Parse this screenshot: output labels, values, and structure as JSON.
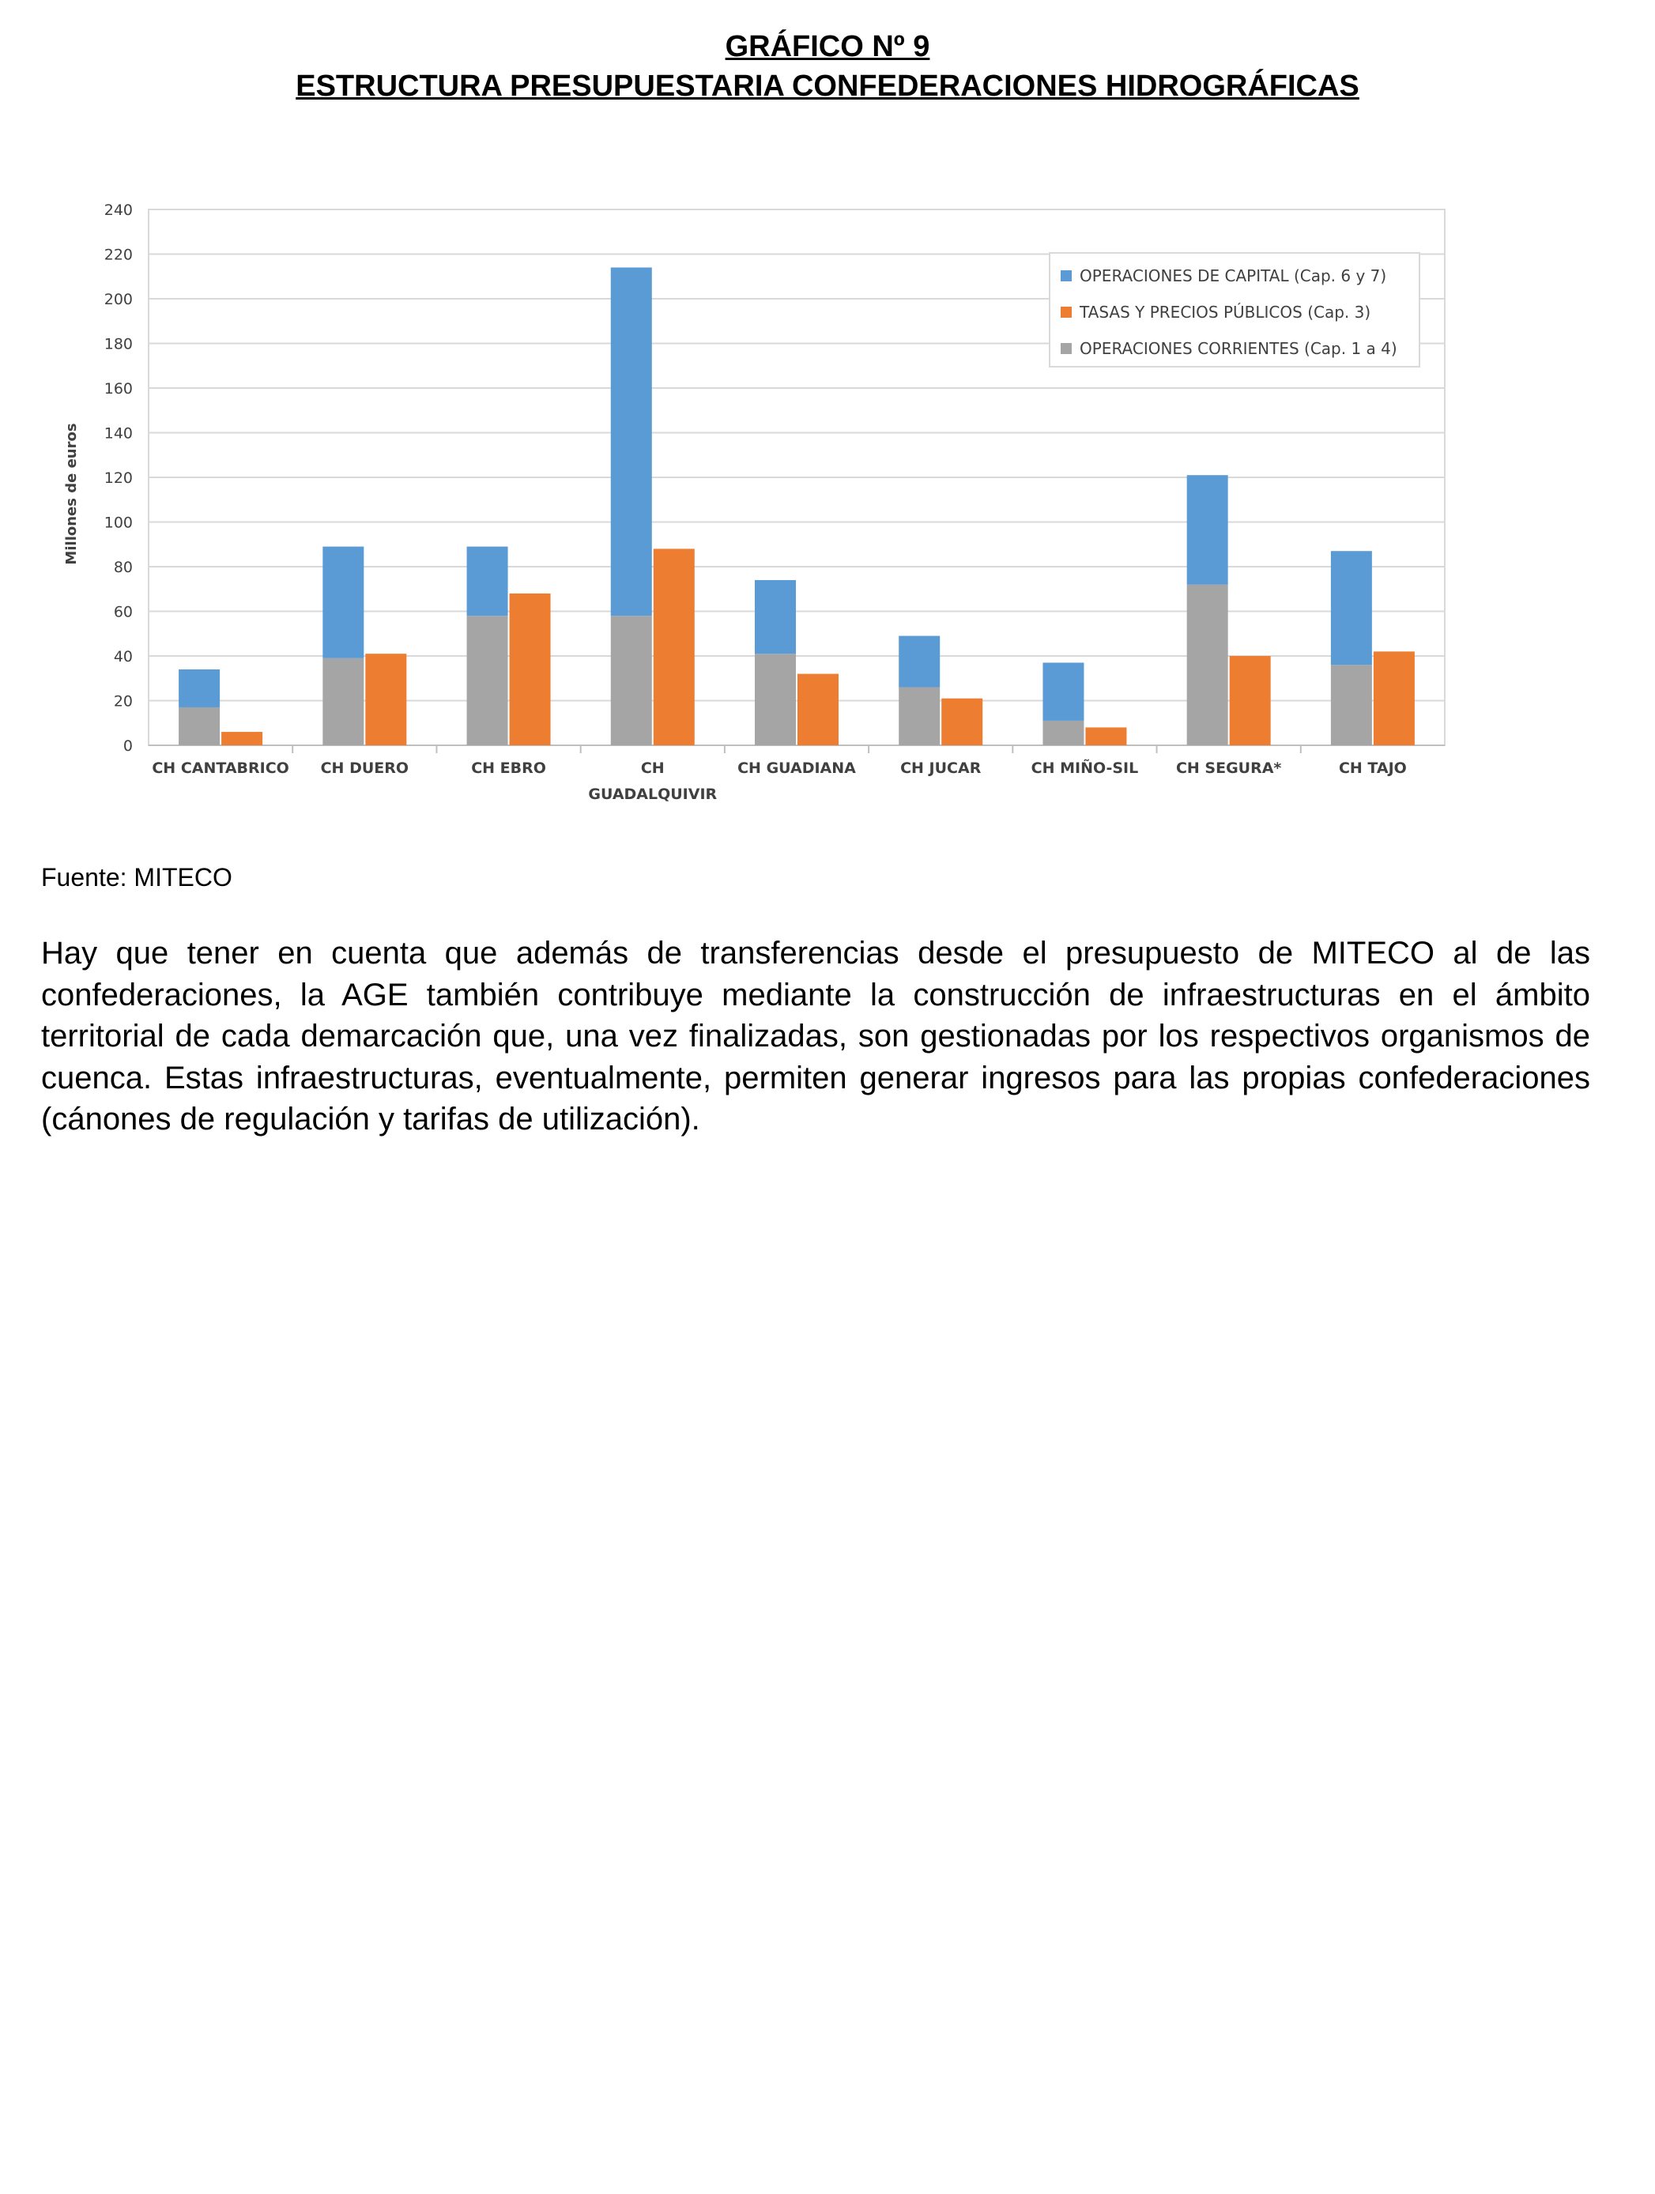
{
  "page": {
    "title_line1": "GRÁFICO Nº 9",
    "title_line2": "ESTRUCTURA PRESUPUESTARIA CONFEDERACIONES HIDROGRÁFICAS",
    "source": "Fuente: MITECO",
    "paragraph": "Hay que tener en cuenta que además de transferencias desde el presupuesto de MITECO al de las confederaciones, la AGE también contribuye mediante la construcción de infraestructuras en el ámbito territorial de cada demarcación que, una vez finalizadas, son gestionadas por los respectivos organismos de cuenca. Estas infraestructuras, eventualmente, permiten generar ingresos para las propias confederaciones (cánones de regulación y tarifas de utilización)."
  },
  "chart_data": {
    "type": "bar",
    "stacked_group": [
      "OPERACIONES CORRIENTES (Cap. 1 a 4)",
      "OPERACIONES DE CAPITAL (Cap. 6 y 7)"
    ],
    "categories": [
      [
        "CH CANTABRICO"
      ],
      [
        "CH DUERO"
      ],
      [
        "CH EBRO"
      ],
      [
        "CH",
        "GUADALQUIVIR"
      ],
      [
        "CH GUADIANA"
      ],
      [
        "CH JUCAR"
      ],
      [
        "CH MIÑO-SIL"
      ],
      [
        "CH SEGURA*"
      ],
      [
        "CH TAJO"
      ]
    ],
    "series": [
      {
        "name": "OPERACIONES DE CAPITAL (Cap. 6 y 7)",
        "color": "#5b9bd5",
        "values": [
          17,
          50,
          31,
          156,
          33,
          23,
          26,
          49,
          51
        ]
      },
      {
        "name": "TASAS Y PRECIOS PÚBLICOS (Cap. 3)",
        "color": "#ed7d31",
        "values": [
          6,
          41,
          68,
          88,
          32,
          21,
          8,
          40,
          42
        ]
      },
      {
        "name": "OPERACIONES CORRIENTES (Cap. 1 a 4)",
        "color": "#a5a5a5",
        "values": [
          17,
          39,
          58,
          58,
          41,
          26,
          11,
          72,
          36
        ]
      }
    ],
    "ylabel": "Millones de euros",
    "xlabel": "",
    "ylim": [
      0,
      240
    ],
    "yticks": [
      0,
      20,
      40,
      60,
      80,
      100,
      120,
      140,
      160,
      180,
      200,
      220,
      240
    ],
    "grid": true,
    "legend_position": "top-right"
  }
}
